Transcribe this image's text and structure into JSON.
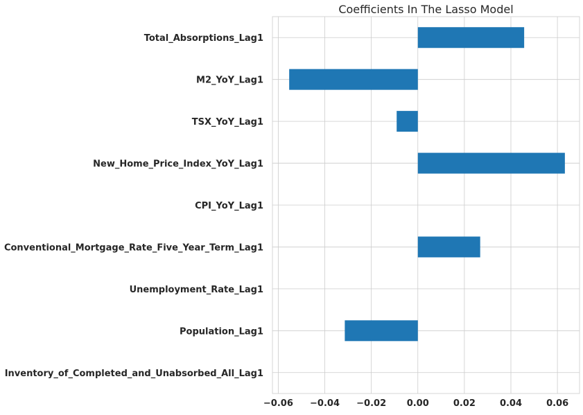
{
  "chart_data": {
    "type": "bar",
    "orientation": "horizontal",
    "title": "Coefficients In The Lasso Model",
    "xlabel": "",
    "ylabel": "",
    "categories": [
      "Total_Absorptions_Lag1",
      "M2_YoY_Lag1",
      "TSX_YoY_Lag1",
      "New_Home_Price_Index_YoY_Lag1",
      "CPI_YoY_Lag1",
      "Conventional_Mortgage_Rate_Five_Year_Term_Lag1",
      "Unemployment_Rate_Lag1",
      "Population_Lag1",
      "Inventory_of_Completed_and_Unabsorbed_All_Lag1"
    ],
    "values": [
      0.0457,
      -0.0553,
      -0.0091,
      0.0632,
      0.0,
      0.0268,
      0.0,
      -0.0314,
      0.0
    ],
    "xlim": [
      -0.0625,
      0.0695
    ],
    "xticks": [
      -0.06,
      -0.04,
      -0.02,
      0.0,
      0.02,
      0.04,
      0.06
    ],
    "xtick_labels": [
      "−0.06",
      "−0.04",
      "−0.02",
      "0.00",
      "0.02",
      "0.04",
      "0.06"
    ],
    "grid": true,
    "bar_color": "#1f77b4",
    "grid_color": "#cccccc",
    "text_color": "#262626"
  }
}
